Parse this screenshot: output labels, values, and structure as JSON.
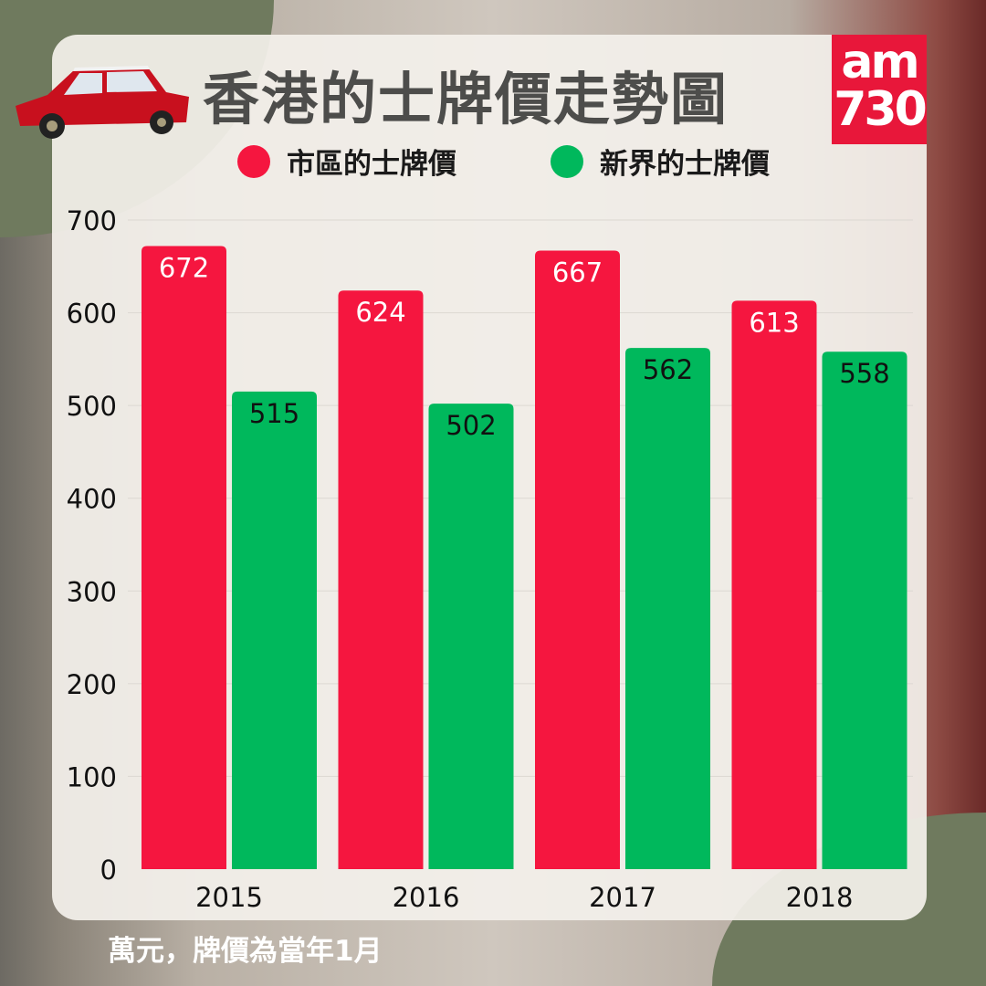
{
  "header": {
    "title": "香港的士牌價走勢圖",
    "logo_text": "am730"
  },
  "chart_data": {
    "type": "bar",
    "title": "香港的士牌價走勢圖",
    "categories": [
      "2015",
      "2016",
      "2017",
      "2018"
    ],
    "series": [
      {
        "name": "市區的士牌價",
        "color": "#f5163f",
        "values": [
          672,
          624,
          667,
          613
        ]
      },
      {
        "name": "新界的士牌價",
        "color": "#00b85c",
        "values": [
          515,
          502,
          562,
          558
        ]
      }
    ],
    "ylim": [
      0,
      700
    ],
    "yticks": [
      "0",
      "100",
      "200",
      "300",
      "400",
      "500",
      "600",
      "700"
    ],
    "grid": true,
    "legend": "top",
    "footnote": "萬元，牌價為當年1月"
  }
}
